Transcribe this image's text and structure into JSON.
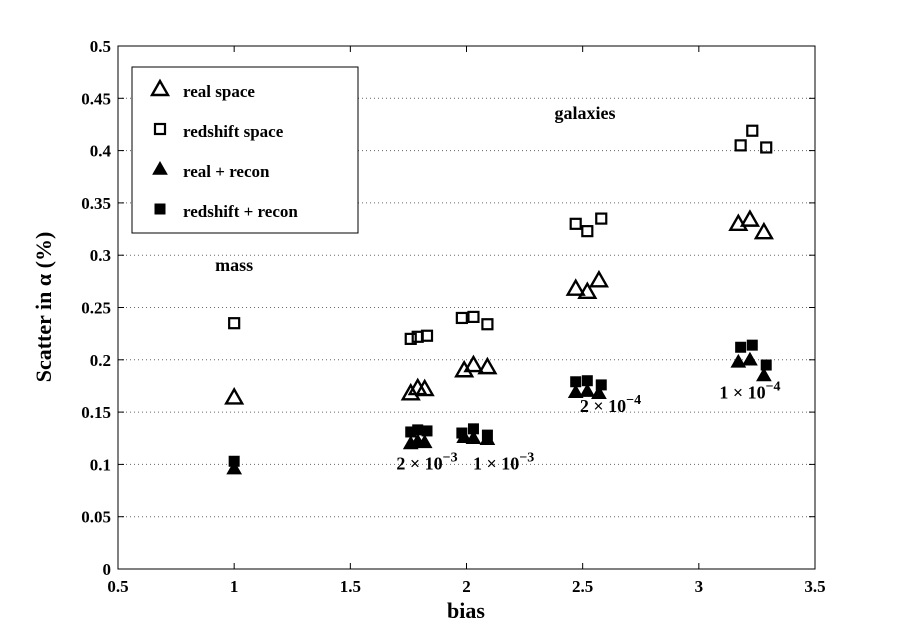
{
  "chart_data": {
    "type": "scatter",
    "title": "",
    "xlabel": "bias",
    "ylabel": "Scatter in α (%)",
    "xlim": [
      0.5,
      3.5
    ],
    "ylim": [
      0,
      0.5
    ],
    "xticks": [
      "0.5",
      "1",
      "1.5",
      "2",
      "2.5",
      "3",
      "3.5"
    ],
    "yticks": [
      "0",
      "0.05",
      "0.1",
      "0.15",
      "0.2",
      "0.25",
      "0.3",
      "0.35",
      "0.4",
      "0.45",
      "0.5"
    ],
    "grid": "horizontal dotted",
    "legend_position": "top-left",
    "series": [
      {
        "name": "real space",
        "marker": "triangle-open",
        "points": [
          [
            1.0,
            0.164
          ],
          [
            1.76,
            0.168
          ],
          [
            1.79,
            0.173
          ],
          [
            1.82,
            0.172
          ],
          [
            1.99,
            0.19
          ],
          [
            2.03,
            0.195
          ],
          [
            2.09,
            0.193
          ],
          [
            2.47,
            0.268
          ],
          [
            2.52,
            0.265
          ],
          [
            2.57,
            0.276
          ],
          [
            3.17,
            0.33
          ],
          [
            3.22,
            0.334
          ],
          [
            3.28,
            0.322
          ]
        ]
      },
      {
        "name": "redshift space",
        "marker": "square-open",
        "points": [
          [
            1.0,
            0.235
          ],
          [
            1.76,
            0.22
          ],
          [
            1.79,
            0.222
          ],
          [
            1.83,
            0.223
          ],
          [
            1.98,
            0.24
          ],
          [
            2.03,
            0.241
          ],
          [
            2.09,
            0.234
          ],
          [
            2.47,
            0.33
          ],
          [
            2.52,
            0.323
          ],
          [
            2.58,
            0.335
          ],
          [
            3.18,
            0.405
          ],
          [
            3.23,
            0.419
          ],
          [
            3.29,
            0.403
          ]
        ]
      },
      {
        "name": "real + recon",
        "marker": "triangle-filled",
        "points": [
          [
            1.0,
            0.096
          ],
          [
            1.76,
            0.12
          ],
          [
            1.79,
            0.122
          ],
          [
            1.82,
            0.121
          ],
          [
            1.99,
            0.126
          ],
          [
            2.03,
            0.125
          ],
          [
            2.09,
            0.124
          ],
          [
            2.47,
            0.169
          ],
          [
            2.52,
            0.17
          ],
          [
            2.57,
            0.168
          ],
          [
            3.17,
            0.198
          ],
          [
            3.22,
            0.2
          ],
          [
            3.28,
            0.185
          ]
        ]
      },
      {
        "name": "redshift + recon",
        "marker": "square-filled",
        "points": [
          [
            1.0,
            0.103
          ],
          [
            1.76,
            0.131
          ],
          [
            1.79,
            0.133
          ],
          [
            1.83,
            0.132
          ],
          [
            1.98,
            0.13
          ],
          [
            2.03,
            0.134
          ],
          [
            2.09,
            0.128
          ],
          [
            2.47,
            0.179
          ],
          [
            2.52,
            0.18
          ],
          [
            2.58,
            0.176
          ],
          [
            3.18,
            0.212
          ],
          [
            3.23,
            0.214
          ],
          [
            3.29,
            0.195
          ]
        ]
      }
    ],
    "annotations": [
      {
        "id": "mass",
        "text": "mass",
        "x": 1.0,
        "y": 0.285
      },
      {
        "id": "galaxies",
        "text": "galaxies",
        "x": 2.51,
        "y": 0.43
      },
      {
        "id": "n1",
        "base": "2 × 10",
        "exp": "−3",
        "x": 1.83,
        "y": 0.095
      },
      {
        "id": "n2",
        "base": "1 × 10",
        "exp": "−3",
        "x": 2.16,
        "y": 0.095
      },
      {
        "id": "n3",
        "base": "2 × 10",
        "exp": "−4",
        "x": 2.62,
        "y": 0.15
      },
      {
        "id": "n4",
        "base": "1 × 10",
        "exp": "−4",
        "x": 3.22,
        "y": 0.163
      }
    ]
  }
}
